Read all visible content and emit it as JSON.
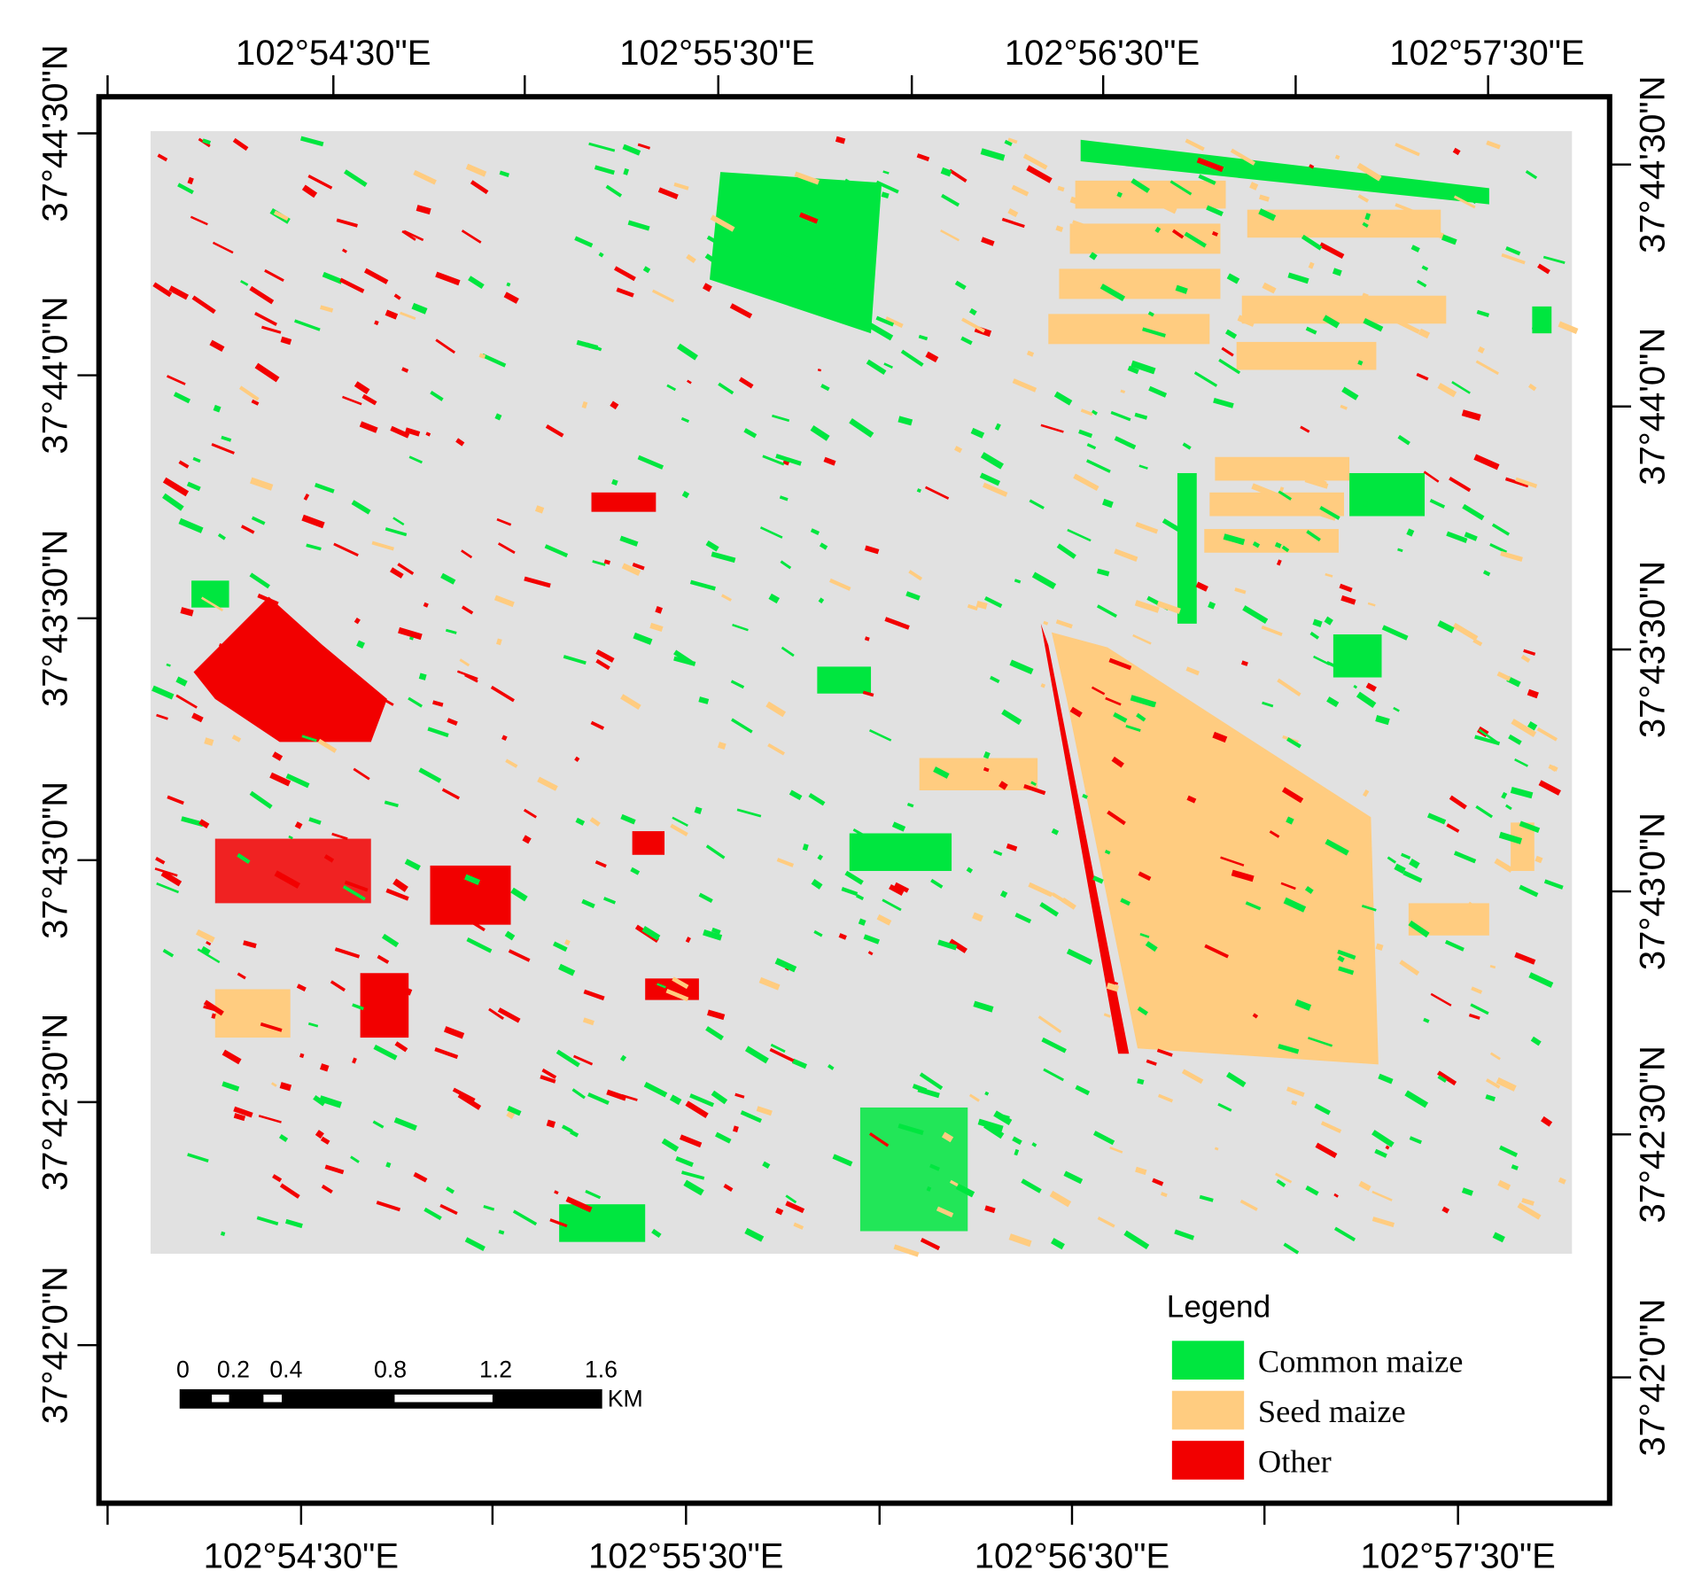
{
  "map": {
    "top_labels": [
      "102°54'30\"E",
      "102°55'30\"E",
      "102°56'30\"E",
      "102°57'30\"E"
    ],
    "bottom_labels": [
      "102°54'30\"E",
      "102°55'30\"E",
      "102°56'30\"E",
      "102°57'30\"E"
    ],
    "left_labels": [
      "37°44'30\"N",
      "37°44'0\"N",
      "37°43'30\"N",
      "37°43'0\"N",
      "37°42'30\"N",
      "37°42'0\"N"
    ],
    "right_labels": [
      "37°44'30\"N",
      "37°44'0\"N",
      "37°43'30\"N",
      "37°43'0\"N",
      "37°42'30\"N",
      "37°42'0\"N"
    ],
    "legend": {
      "title": "Legend",
      "items": [
        {
          "label": "Common maize",
          "color": "#00e63f"
        },
        {
          "label": "Seed maize",
          "color": "#ffcc80"
        },
        {
          "label": "Other",
          "color": "#f20000"
        }
      ]
    },
    "scale_bar": {
      "labels": [
        "0",
        "0.2",
        "0.4",
        "0.8",
        "1.2",
        "1.6"
      ],
      "unit": "KM"
    }
  }
}
